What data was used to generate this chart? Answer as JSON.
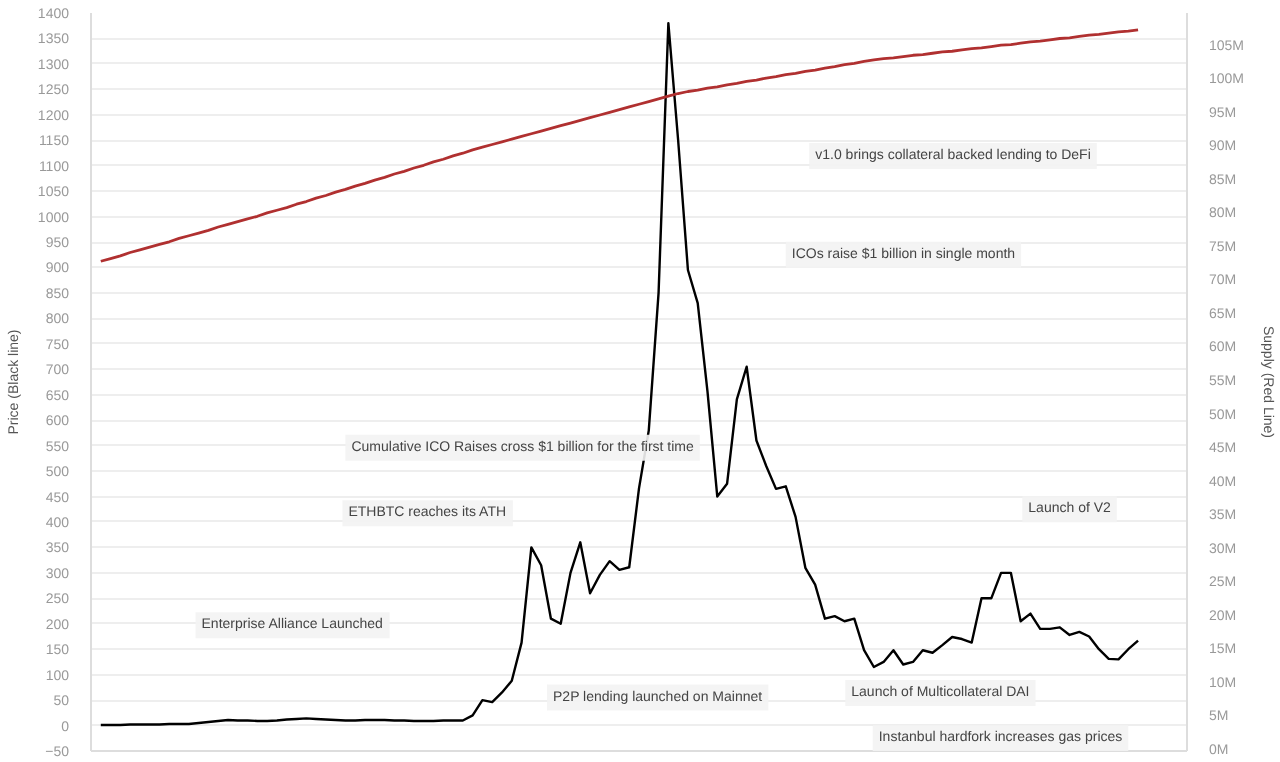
{
  "chart_data": {
    "type": "line",
    "ylabel": "Price (Black line)",
    "y2label": "Supply (Red Line)",
    "categories": [
      null,
      null,
      null,
      null,
      null,
      null,
      null,
      null,
      null,
      null,
      null,
      null,
      null,
      null,
      null,
      null,
      null,
      null,
      null,
      null,
      null,
      null,
      null,
      null,
      null,
      null,
      null,
      null,
      null,
      null,
      null,
      null,
      null,
      null,
      null,
      null,
      null,
      null,
      null,
      null,
      null,
      null,
      null,
      null,
      null,
      null,
      null,
      null,
      null,
      null,
      null,
      null,
      null,
      null,
      null,
      null,
      null,
      null,
      null,
      null,
      null,
      null,
      null,
      null,
      null,
      null,
      null,
      null,
      null,
      null,
      null,
      null,
      null,
      null,
      null,
      null,
      null,
      null,
      null,
      null,
      null,
      null,
      null,
      null,
      null,
      null,
      null,
      null,
      null,
      null,
      null,
      null,
      null,
      null,
      null,
      null,
      null,
      null,
      null,
      null,
      null,
      null,
      null,
      null,
      null,
      null,
      null
    ],
    "series": [
      {
        "color": "#000000",
        "values": [
          1,
          1,
          1,
          2,
          2,
          2,
          2,
          3,
          3,
          3,
          5,
          7,
          9,
          11,
          10,
          10,
          9,
          9,
          10,
          12,
          13,
          14,
          13,
          12,
          11,
          10,
          10,
          11,
          11,
          11,
          10,
          10,
          9,
          9,
          9,
          10,
          10,
          10,
          20,
          50,
          46,
          65,
          88,
          163,
          350,
          315,
          210,
          200,
          300,
          360,
          260,
          296,
          323,
          306,
          311,
          466,
          580,
          850,
          1380,
          1150,
          895,
          830,
          656,
          450,
          475,
          641,
          705,
          560,
          510,
          465,
          470,
          410,
          310,
          277,
          210,
          215,
          205,
          210,
          148,
          115,
          125,
          148,
          120,
          125,
          148,
          143,
          158,
          174,
          170,
          163,
          250,
          250,
          300,
          300,
          205,
          220,
          190,
          190,
          193,
          178,
          184,
          175,
          150,
          131,
          130,
          150,
          167
        ]
      },
      {
        "color": "#b03030",
        "axis": "y2",
        "values": [
          73.0,
          73.4,
          73.8,
          74.3,
          74.7,
          75.1,
          75.5,
          75.9,
          76.4,
          76.8,
          77.2,
          77.6,
          78.1,
          78.5,
          78.9,
          79.3,
          79.7,
          80.2,
          80.6,
          81.0,
          81.5,
          81.9,
          82.4,
          82.8,
          83.3,
          83.7,
          84.2,
          84.6,
          85.1,
          85.5,
          86.0,
          86.4,
          86.9,
          87.3,
          87.8,
          88.2,
          88.7,
          89.1,
          89.6,
          90.0,
          90.4,
          90.8,
          91.2,
          91.6,
          92.0,
          92.4,
          92.8,
          93.2,
          93.6,
          94.0,
          94.4,
          94.8,
          95.2,
          95.6,
          96.0,
          96.4,
          96.8,
          97.2,
          97.6,
          98.0,
          98.3,
          98.5,
          98.8,
          99.0,
          99.3,
          99.5,
          99.8,
          100.0,
          100.3,
          100.5,
          100.8,
          101.0,
          101.3,
          101.5,
          101.8,
          102.0,
          102.3,
          102.5,
          102.8,
          103.0,
          103.2,
          103.3,
          103.5,
          103.7,
          103.8,
          104.0,
          104.2,
          104.3,
          104.5,
          104.7,
          104.8,
          105.0,
          105.2,
          105.3,
          105.5,
          105.7,
          105.8,
          106.0,
          106.2,
          106.3,
          106.5,
          106.7,
          106.8,
          107.0,
          107.2,
          107.3,
          107.5
        ]
      }
    ],
    "ylim": [
      -50,
      1400
    ],
    "yticks": [
      -50,
      0,
      50,
      100,
      150,
      200,
      250,
      300,
      350,
      400,
      450,
      500,
      550,
      600,
      650,
      700,
      750,
      800,
      850,
      900,
      950,
      1000,
      1050,
      1100,
      1150,
      1200,
      1250,
      1300,
      1350,
      1400
    ],
    "y2lim": [
      0,
      110
    ],
    "y2ticks": [
      {
        "value": 0,
        "label": "0M"
      },
      {
        "value": 5,
        "label": "5M"
      },
      {
        "value": 10,
        "label": "10M"
      },
      {
        "value": 15,
        "label": "15M"
      },
      {
        "value": 20,
        "label": "20M"
      },
      {
        "value": 25,
        "label": "25M"
      },
      {
        "value": 30,
        "label": "30M"
      },
      {
        "value": 35,
        "label": "35M"
      },
      {
        "value": 40,
        "label": "40M"
      },
      {
        "value": 45,
        "label": "45M"
      },
      {
        "value": 50,
        "label": "50M"
      },
      {
        "value": 55,
        "label": "55M"
      },
      {
        "value": 60,
        "label": "60M"
      },
      {
        "value": 65,
        "label": "65M"
      },
      {
        "value": 70,
        "label": "70M"
      },
      {
        "value": 75,
        "label": "75M"
      },
      {
        "value": 80,
        "label": "80M"
      },
      {
        "value": 85,
        "label": "85M"
      },
      {
        "value": 90,
        "label": "90M"
      },
      {
        "value": 95,
        "label": "95M"
      },
      {
        "value": 100,
        "label": "100M"
      },
      {
        "value": 105,
        "label": "105M"
      }
    ],
    "tick_labels": "y",
    "grid": "y",
    "annotations": [
      "Cumulative ICO Raises cross $1 billion for the first time",
      "ETHBTC reaches its ATH",
      "Enterprise Alliance Launched",
      "P2P lending launched on Mainnet",
      "v1.0 brings collateral backed lending to DeFi",
      "ICOs raise $1 billion in single month",
      "Launch of V2",
      "Launch of Multicollateral DAI",
      "Instanbul hardfork increases gas prices"
    ]
  }
}
